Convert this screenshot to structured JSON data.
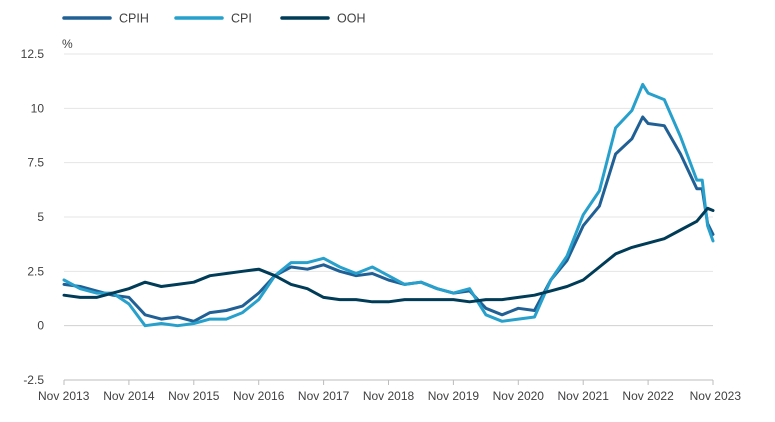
{
  "chart_data": {
    "type": "line",
    "title": "",
    "xlabel": "",
    "ylabel": "%",
    "ylim": [
      -2.5,
      12.5
    ],
    "yticks": [
      12.5,
      10,
      7.5,
      5,
      2.5,
      0,
      -2.5
    ],
    "ytick_labels": [
      "12.5",
      "10",
      "7.5",
      "5",
      "2.5",
      "0",
      "-2.5"
    ],
    "xlim": [
      "Nov 2013",
      "Nov 2023"
    ],
    "xticks": [
      "Nov 2013",
      "Nov 2014",
      "Nov 2015",
      "Nov 2016",
      "Nov 2017",
      "Nov 2018",
      "Nov 2019",
      "Nov 2020",
      "Nov 2021",
      "Nov 2022",
      "Nov 2023"
    ],
    "grid": "horizontal",
    "legend": "top-left",
    "series": [
      {
        "name": "CPIH",
        "color": "#206095",
        "x": [
          "Nov 2013",
          "Feb 2014",
          "May 2014",
          "Aug 2014",
          "Nov 2014",
          "Feb 2015",
          "May 2015",
          "Aug 2015",
          "Nov 2015",
          "Feb 2016",
          "May 2016",
          "Aug 2016",
          "Nov 2016",
          "Feb 2017",
          "May 2017",
          "Aug 2017",
          "Nov 2017",
          "Feb 2018",
          "May 2018",
          "Aug 2018",
          "Nov 2018",
          "Feb 2019",
          "May 2019",
          "Aug 2019",
          "Nov 2019",
          "Feb 2020",
          "May 2020",
          "Aug 2020",
          "Nov 2020",
          "Feb 2021",
          "May 2021",
          "Aug 2021",
          "Nov 2021",
          "Feb 2022",
          "May 2022",
          "Aug 2022",
          "Oct 2022",
          "Nov 2022",
          "Feb 2023",
          "May 2023",
          "Aug 2023",
          "Sep 2023",
          "Oct 2023",
          "Nov 2023"
        ],
        "y": [
          1.9,
          1.8,
          1.6,
          1.4,
          1.3,
          0.5,
          0.3,
          0.4,
          0.2,
          0.6,
          0.7,
          0.9,
          1.5,
          2.3,
          2.7,
          2.6,
          2.8,
          2.5,
          2.3,
          2.4,
          2.1,
          1.9,
          2.0,
          1.7,
          1.5,
          1.6,
          0.8,
          0.5,
          0.8,
          0.7,
          2.1,
          3.0,
          4.6,
          5.5,
          7.9,
          8.6,
          9.6,
          9.3,
          9.2,
          7.9,
          6.3,
          6.3,
          4.7,
          4.2
        ]
      },
      {
        "name": "CPI",
        "color": "#27a0cc",
        "x": [
          "Nov 2013",
          "Feb 2014",
          "May 2014",
          "Aug 2014",
          "Nov 2014",
          "Feb 2015",
          "May 2015",
          "Aug 2015",
          "Nov 2015",
          "Feb 2016",
          "May 2016",
          "Aug 2016",
          "Nov 2016",
          "Feb 2017",
          "May 2017",
          "Aug 2017",
          "Nov 2017",
          "Feb 2018",
          "May 2018",
          "Aug 2018",
          "Nov 2018",
          "Feb 2019",
          "May 2019",
          "Aug 2019",
          "Nov 2019",
          "Feb 2020",
          "May 2020",
          "Aug 2020",
          "Nov 2020",
          "Feb 2021",
          "May 2021",
          "Aug 2021",
          "Nov 2021",
          "Feb 2022",
          "May 2022",
          "Aug 2022",
          "Oct 2022",
          "Nov 2022",
          "Feb 2023",
          "May 2023",
          "Aug 2023",
          "Sep 2023",
          "Oct 2023",
          "Nov 2023"
        ],
        "y": [
          2.1,
          1.7,
          1.5,
          1.5,
          1.0,
          0.0,
          0.1,
          0.0,
          0.1,
          0.3,
          0.3,
          0.6,
          1.2,
          2.3,
          2.9,
          2.9,
          3.1,
          2.7,
          2.4,
          2.7,
          2.3,
          1.9,
          2.0,
          1.7,
          1.5,
          1.7,
          0.5,
          0.2,
          0.3,
          0.4,
          2.1,
          3.2,
          5.1,
          6.2,
          9.1,
          9.9,
          11.1,
          10.7,
          10.4,
          8.7,
          6.7,
          6.7,
          4.6,
          3.9
        ]
      },
      {
        "name": "OOH",
        "color": "#003c57",
        "x": [
          "Nov 2013",
          "Feb 2014",
          "May 2014",
          "Aug 2014",
          "Nov 2014",
          "Feb 2015",
          "May 2015",
          "Aug 2015",
          "Nov 2015",
          "Feb 2016",
          "May 2016",
          "Aug 2016",
          "Nov 2016",
          "Feb 2017",
          "May 2017",
          "Aug 2017",
          "Nov 2017",
          "Feb 2018",
          "May 2018",
          "Aug 2018",
          "Nov 2018",
          "Feb 2019",
          "May 2019",
          "Aug 2019",
          "Nov 2019",
          "Feb 2020",
          "May 2020",
          "Aug 2020",
          "Nov 2020",
          "Feb 2021",
          "May 2021",
          "Aug 2021",
          "Nov 2021",
          "Feb 2022",
          "May 2022",
          "Aug 2022",
          "Nov 2022",
          "Feb 2023",
          "May 2023",
          "Aug 2023",
          "Oct 2023",
          "Nov 2023"
        ],
        "y": [
          1.4,
          1.3,
          1.3,
          1.5,
          1.7,
          2.0,
          1.8,
          1.9,
          2.0,
          2.3,
          2.4,
          2.5,
          2.6,
          2.3,
          1.9,
          1.7,
          1.3,
          1.2,
          1.2,
          1.1,
          1.1,
          1.2,
          1.2,
          1.2,
          1.2,
          1.1,
          1.2,
          1.2,
          1.3,
          1.4,
          1.6,
          1.8,
          2.1,
          2.7,
          3.3,
          3.6,
          3.8,
          4.0,
          4.4,
          4.8,
          5.4,
          5.3
        ]
      }
    ]
  }
}
